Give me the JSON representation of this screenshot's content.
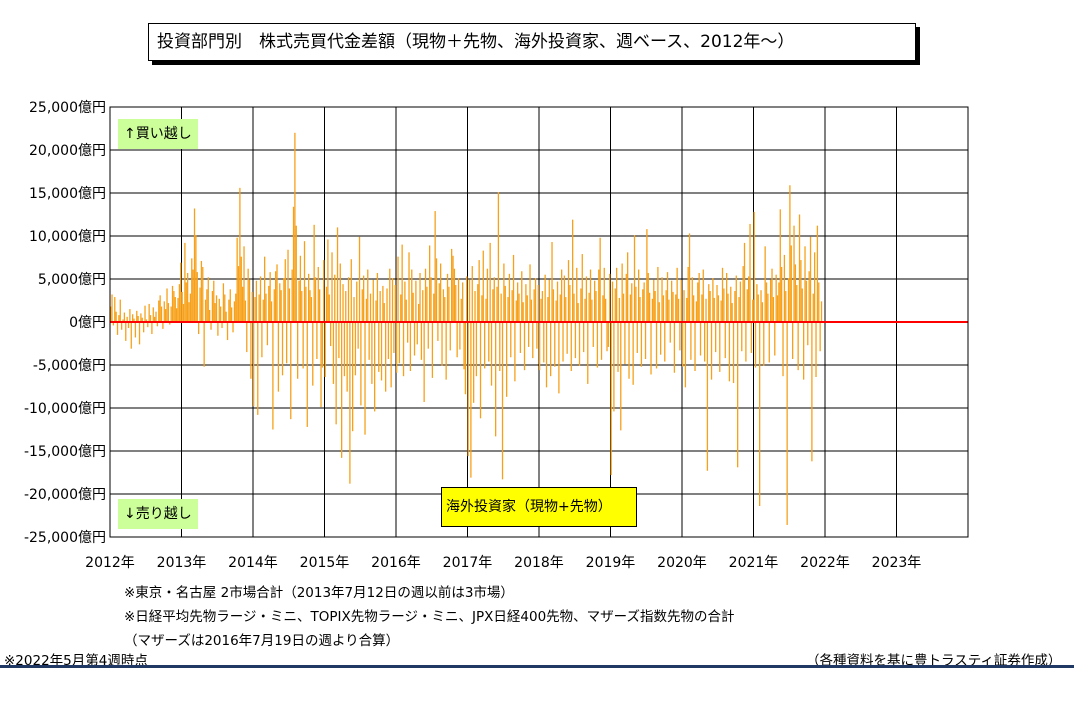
{
  "title": "投資部門別　株式売買代金差額（現物＋先物、海外投資家、週ベース、2012年～）",
  "tags": {
    "buy": "↑買い越し",
    "sell": "↓売り越し"
  },
  "legend_label": "海外投資家（現物+先物）",
  "notes": {
    "note1": "※東京・名古屋 2市場合計（2013年7月12日の週以前は3市場）",
    "note2": "※日経平均先物ラージ・ミニ、TOPIX先物ラージ・ミニ、JPX日経400先物、マザーズ指数先物の合計",
    "note3": "（マザーズは2016年7月19日の週より合算）",
    "asof": "※2022年5月第4週時点",
    "source": "（各種資料を基に豊トラスティ証券作成）"
  },
  "colors": {
    "bars": "#f7a11a",
    "zero_line": "#ff0000",
    "rule": "#1f3864"
  },
  "chart_data": {
    "type": "bar",
    "title": "投資部門別　株式売買代金差額（現物＋先物、海外投資家、週ベース、2012年～）",
    "xlabel": "",
    "ylabel": "",
    "ylim": [
      -25000,
      25000
    ],
    "y_ticks": [
      25000,
      20000,
      15000,
      10000,
      5000,
      0,
      -5000,
      -10000,
      -15000,
      -20000,
      -25000
    ],
    "y_tick_labels": [
      "25,000億円",
      "20,000億円",
      "15,000億円",
      "10,000億円",
      "5,000億円",
      "0億円",
      "-5,000億円",
      "-10,000億円",
      "-15,000億円",
      "-20,000億円",
      "-25,000億円"
    ],
    "x_tick_labels": [
      "2012年",
      "2013年",
      "2014年",
      "2015年",
      "2016年",
      "2017年",
      "2018年",
      "2019年",
      "2020年",
      "2021年",
      "2022年",
      "2023年"
    ],
    "grid": true,
    "series": [
      {
        "name": "海外投資家（現物+先物）",
        "x_start_year": 2012,
        "values_per_year": 52,
        "values": [
          1800,
          3200,
          -400,
          2900,
          1200,
          -1500,
          800,
          2600,
          -900,
          300,
          1100,
          -2200,
          600,
          -700,
          1500,
          -3100,
          900,
          400,
          -1800,
          1300,
          700,
          -2600,
          1000,
          500,
          -1200,
          1900,
          300,
          -600,
          2100,
          800,
          -1400,
          1700,
          600,
          1200,
          -500,
          2500,
          3100,
          1800,
          -800,
          2400,
          1500,
          3900,
          2200,
          -300,
          1800,
          4200,
          3600,
          2900,
          1600,
          2800,
          4400,
          6900,
          3500,
          2100,
          9200,
          4600,
          5700,
          2300,
          3300,
          7400,
          6100,
          13200,
          10100,
          5800,
          -1400,
          4000,
          7100,
          6400,
          -5200,
          2600,
          3800,
          5200,
          1400,
          -900,
          3600,
          4800,
          2200,
          3100,
          -1600,
          2700,
          1800,
          -700,
          4500,
          3200,
          1200,
          -2100,
          2600,
          3800,
          1700,
          -1200,
          2400,
          3300,
          9800,
          6500,
          15600,
          7600,
          4100,
          8800,
          2500,
          -3500,
          6200,
          4900,
          -6600,
          3500,
          -9800,
          2900,
          4800,
          -10800,
          3200,
          5300,
          -4100,
          2600,
          7600,
          3300,
          -2700,
          4200,
          5800,
          2400,
          -12500,
          3800,
          5900,
          6700,
          -8100,
          4500,
          3700,
          -6200,
          5100,
          7300,
          -4800,
          8400,
          3900,
          -11300,
          6100,
          13400,
          22000,
          11200,
          -6600,
          4800,
          7700,
          3600,
          -5400,
          9400,
          4100,
          -12200,
          5600,
          3700,
          2900,
          -7400,
          11300,
          5200,
          -4300,
          6400,
          3800,
          -9900,
          -5300,
          7200,
          -6400,
          4100,
          9600,
          3200,
          -2800,
          8100,
          -7200,
          5500,
          -11900,
          11000,
          -4200,
          6800,
          -15800,
          4400,
          -6300,
          3600,
          -8100,
          5200,
          -18800,
          7300,
          -12700,
          2900,
          -6200,
          4700,
          -3100,
          9900,
          -9700,
          3800,
          5400,
          -13100,
          2700,
          6100,
          -4400,
          3300,
          -7200,
          4900,
          -10400,
          2500,
          5700,
          -5800,
          3600,
          -6800,
          4200,
          2200,
          -8100,
          3900,
          -4300,
          6200,
          -7600,
          5100,
          -3600,
          4300,
          -5900,
          7600,
          -4800,
          3200,
          9000,
          -6300,
          4700,
          2600,
          -2400,
          8100,
          -5700,
          6100,
          3400,
          -3900,
          4800,
          -2600,
          2100,
          5700,
          -4400,
          3700,
          -9300,
          6200,
          4100,
          -3100,
          8900,
          5200,
          -6500,
          3300,
          12900,
          7400,
          -2200,
          4500,
          6800,
          -5100,
          3800,
          2900,
          -6700,
          5600,
          4100,
          -3300,
          8500,
          7700,
          6200,
          4300,
          -4100,
          5100,
          -3200,
          2700,
          4600,
          -5500,
          -8400,
          5300,
          -15600,
          4900,
          -18100,
          6500,
          -9400,
          3600,
          -6300,
          4400,
          7200,
          -11200,
          3100,
          8300,
          -5400,
          2700,
          6200,
          -4600,
          9200,
          -7400,
          3800,
          5200,
          -13300,
          4100,
          15100,
          -5700,
          3300,
          -18300,
          6800,
          4200,
          -8700,
          2900,
          5600,
          -4100,
          3700,
          7800,
          -6900,
          2500,
          4600,
          3300,
          -3600,
          5900,
          2300,
          -5600,
          4400,
          3100,
          -2900,
          6700,
          2600,
          -4200,
          3800,
          5100,
          -3100,
          4300,
          -5600,
          2700,
          3600,
          -4700,
          5500,
          -7600,
          2900,
          4900,
          -6300,
          9300,
          3800,
          -5200,
          2500,
          4700,
          -8300,
          3200,
          6100,
          -4600,
          5400,
          2900,
          -3700,
          7200,
          4300,
          -5700,
          11900,
          3300,
          -4200,
          6300,
          2200,
          -5100,
          3900,
          7900,
          -3500,
          2700,
          5300,
          -7200,
          3400,
          6100,
          2600,
          -2900,
          4800,
          3600,
          -5300,
          6100,
          9800,
          -4400,
          3100,
          6300,
          2700,
          -3400,
          -2900,
          5600,
          -17800,
          4700,
          -10400,
          3900,
          6300,
          -5800,
          2800,
          -12600,
          6800,
          3300,
          -4900,
          5600,
          8100,
          -6600,
          3200,
          4500,
          -7300,
          10100,
          4100,
          -3600,
          6100,
          2900,
          -5200,
          3800,
          4600,
          -4300,
          10800,
          5700,
          3400,
          -6100,
          2700,
          4900,
          3600,
          -5400,
          6400,
          2300,
          -3800,
          5200,
          3100,
          -4600,
          3700,
          5800,
          2600,
          -2400,
          4800,
          3500,
          -5900,
          3200,
          6300,
          2700,
          -3300,
          4900,
          -5200,
          3700,
          -7600,
          2800,
          6400,
          10300,
          -4400,
          5200,
          3100,
          -5700,
          2400,
          4600,
          5700,
          -3900,
          3200,
          6100,
          -4600,
          2700,
          -17300,
          4400,
          3600,
          -6700,
          5100,
          2800,
          -3500,
          4300,
          3100,
          -5800,
          2500,
          6300,
          3900,
          -4200,
          5700,
          3300,
          -6900,
          4100,
          2200,
          -7100,
          3600,
          5400,
          -16900,
          2900,
          4700,
          -3400,
          6500,
          9200,
          -4600,
          3800,
          5300,
          11400,
          -3600,
          2600,
          12800,
          -5300,
          4400,
          3200,
          -21400,
          3700,
          2300,
          -5100,
          8800,
          4600,
          3300,
          -4700,
          4900,
          6200,
          2900,
          -3900,
          5500,
          3100,
          4600,
          13100,
          6400,
          -6300,
          7800,
          3600,
          -23600,
          5100,
          15900,
          8900,
          -4300,
          11200,
          6700,
          4300,
          -5600,
          12500,
          7200,
          3900,
          -6700,
          8800,
          4800,
          -2700,
          5900,
          9900,
          -16200,
          3300,
          8100,
          -6400,
          11200,
          4600,
          -3400,
          2400
        ]
      }
    ]
  }
}
